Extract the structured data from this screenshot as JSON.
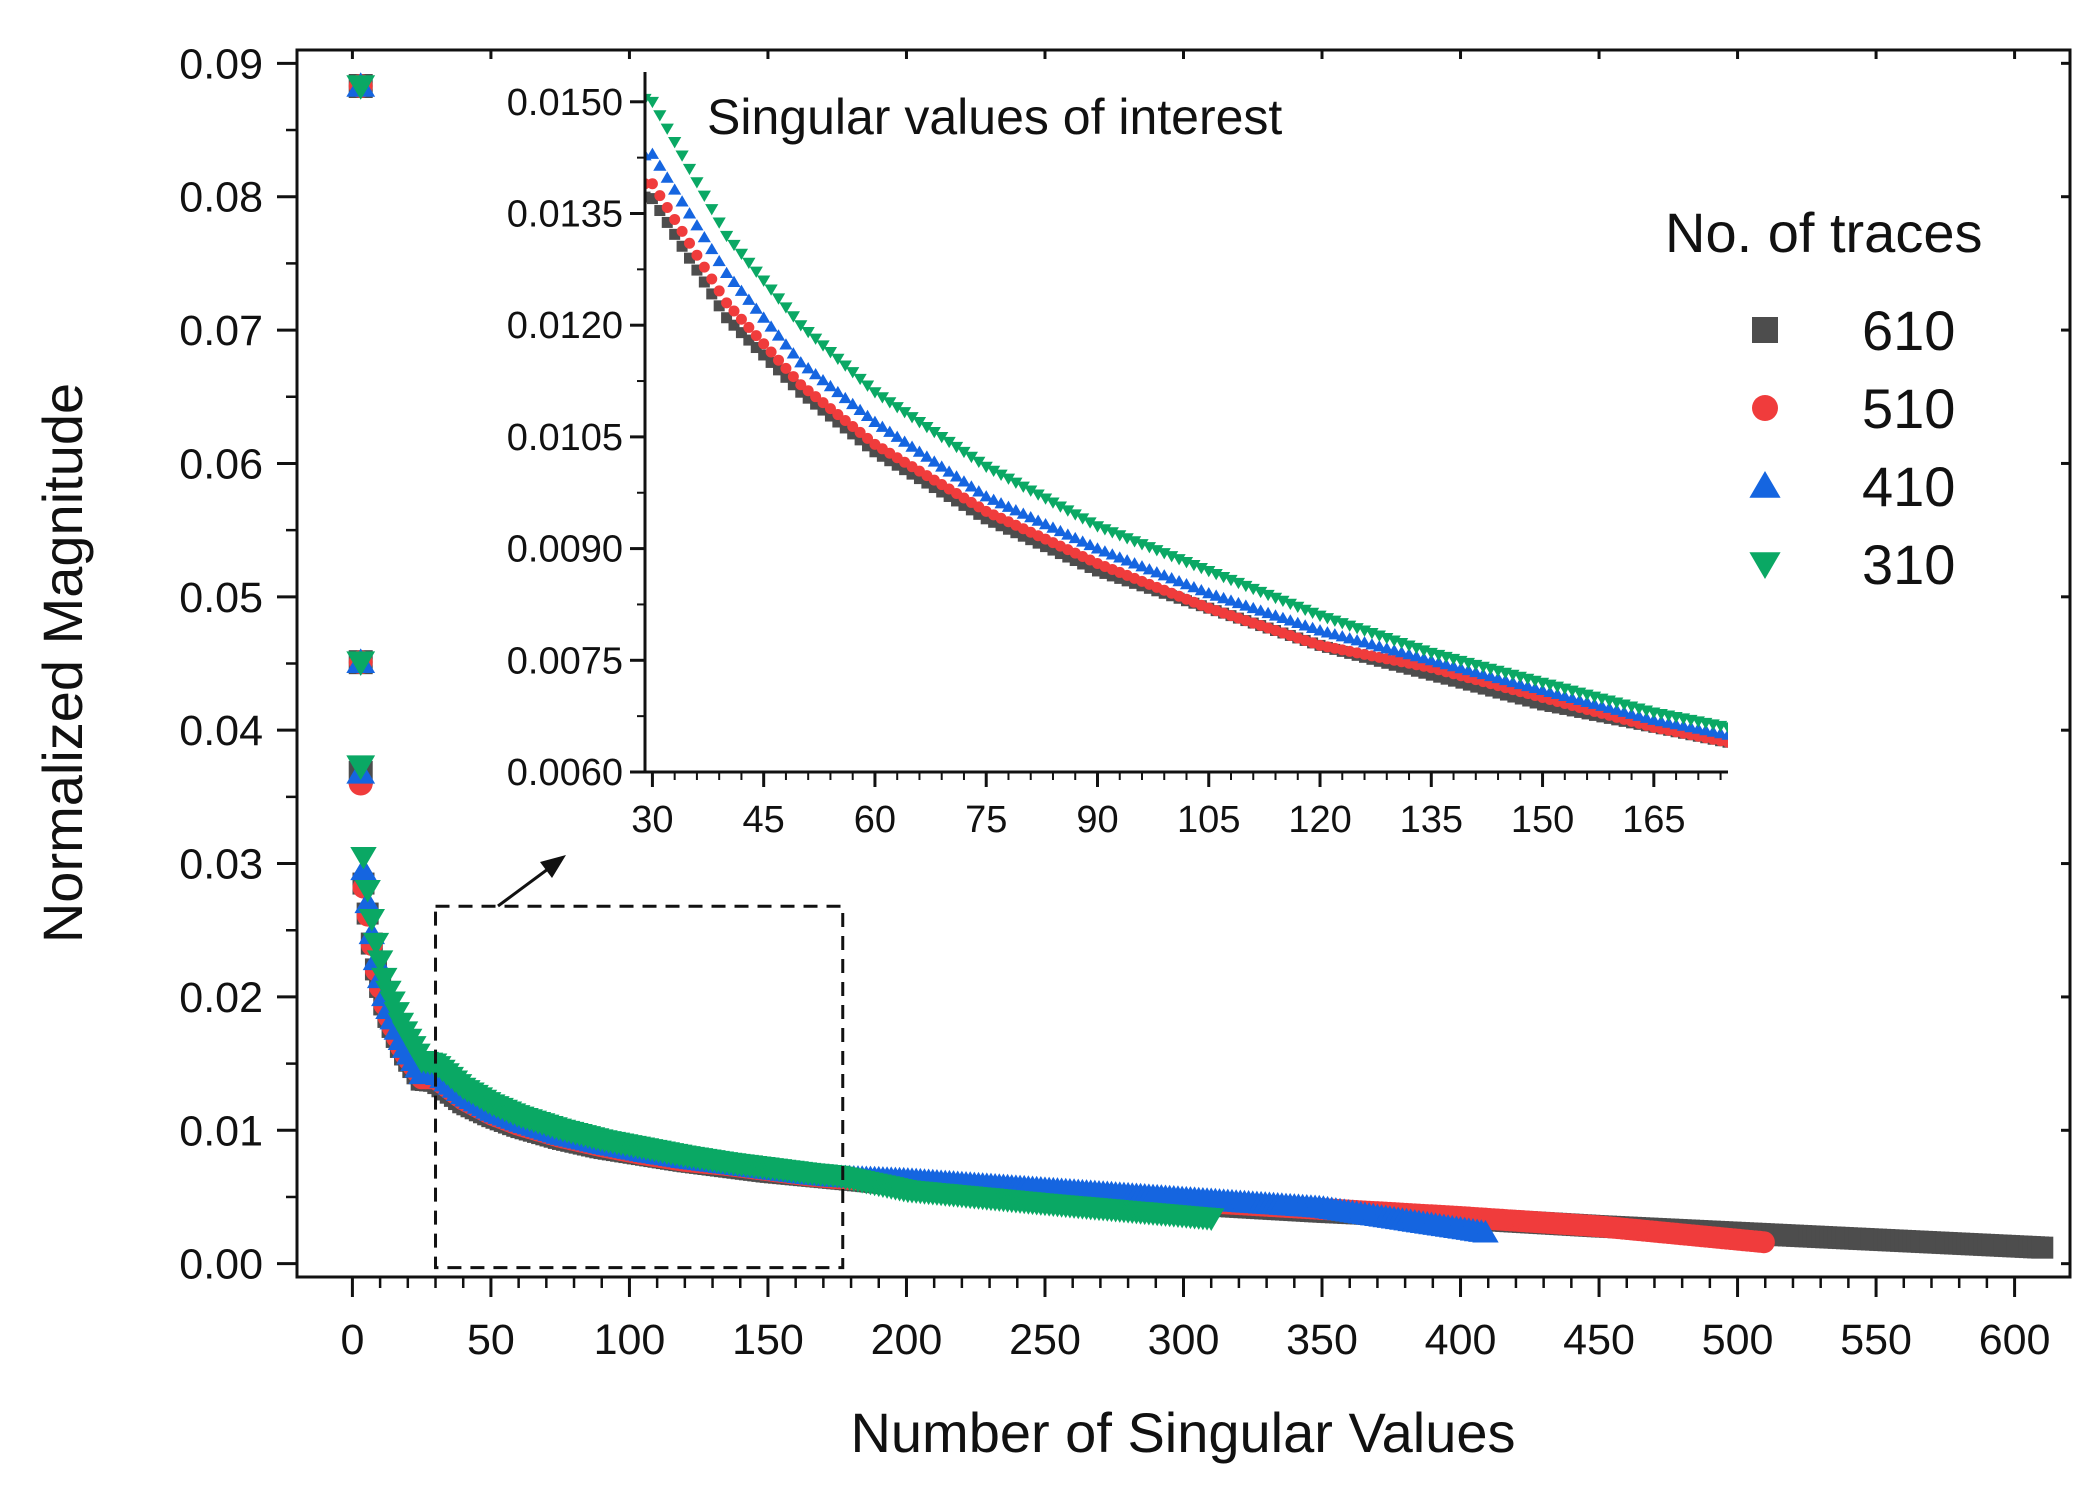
{
  "chart_data": {
    "type": "scatter",
    "main": {
      "xlabel": "Number of Singular Values",
      "ylabel": "Normalized Magnitude",
      "xlim": [
        -20,
        620
      ],
      "ylim": [
        -0.001,
        0.091
      ],
      "xticks": [
        "0",
        "50",
        "100",
        "150",
        "200",
        "250",
        "300",
        "350",
        "400",
        "450",
        "500",
        "550",
        "600"
      ],
      "yticks": [
        "0.00",
        "0.01",
        "0.02",
        "0.03",
        "0.04",
        "0.05",
        "0.06",
        "0.07",
        "0.08",
        "0.09"
      ],
      "zoom_box": {
        "x": [
          30,
          177
        ],
        "y": [
          -0.0003,
          0.0268
        ]
      }
    },
    "inset": {
      "title": "Singular values of interest",
      "xlim": [
        29,
        175
      ],
      "ylim": [
        0.006,
        0.0154
      ],
      "xticks": [
        "30",
        "45",
        "60",
        "75",
        "90",
        "105",
        "120",
        "135",
        "150",
        "165"
      ],
      "yticks": [
        "0.0060",
        "0.0075",
        "0.0090",
        "0.0105",
        "0.0120",
        "0.0135",
        "0.0150"
      ]
    },
    "legend": {
      "title": "No. of traces",
      "position": "right, inside inset area"
    },
    "series": [
      {
        "name": "610",
        "marker": "square",
        "color": "#4d4d4d",
        "count": 610,
        "points": [
          [
            3,
            0.0883
          ],
          [
            3,
            0.0451
          ],
          [
            3,
            0.0368
          ],
          [
            4,
            0.0285
          ],
          [
            6,
            0.0255
          ],
          [
            8,
            0.0225
          ],
          [
            12,
            0.019
          ],
          [
            18,
            0.016
          ],
          [
            25,
            0.0138
          ],
          [
            30,
            0.0137
          ],
          [
            40,
            0.0121
          ],
          [
            50,
            0.0111
          ],
          [
            60,
            0.0103
          ],
          [
            75,
            0.0094
          ],
          [
            90,
            0.0087
          ],
          [
            105,
            0.0082
          ],
          [
            120,
            0.0077
          ],
          [
            135,
            0.0073
          ],
          [
            150,
            0.0069
          ],
          [
            165,
            0.0066
          ],
          [
            175,
            0.0064
          ],
          [
            200,
            0.0059
          ],
          [
            250,
            0.0051
          ],
          [
            300,
            0.0045
          ],
          [
            350,
            0.0039
          ],
          [
            400,
            0.0034
          ],
          [
            450,
            0.0028
          ],
          [
            500,
            0.0023
          ],
          [
            550,
            0.0018
          ],
          [
            610,
            0.0012
          ]
        ]
      },
      {
        "name": "510",
        "marker": "circle",
        "color": "#f03c3c",
        "count": 510,
        "points": [
          [
            3,
            0.0883
          ],
          [
            3,
            0.0451
          ],
          [
            3,
            0.036
          ],
          [
            4,
            0.0282
          ],
          [
            6,
            0.0254
          ],
          [
            8,
            0.0224
          ],
          [
            12,
            0.019
          ],
          [
            18,
            0.016
          ],
          [
            25,
            0.0139
          ],
          [
            30,
            0.0139
          ],
          [
            40,
            0.0123
          ],
          [
            50,
            0.0112
          ],
          [
            60,
            0.0104
          ],
          [
            75,
            0.0095
          ],
          [
            90,
            0.0088
          ],
          [
            105,
            0.0082
          ],
          [
            120,
            0.0077
          ],
          [
            135,
            0.0074
          ],
          [
            150,
            0.007
          ],
          [
            165,
            0.0066
          ],
          [
            175,
            0.0064
          ],
          [
            200,
            0.0061
          ],
          [
            250,
            0.0053
          ],
          [
            300,
            0.0047
          ],
          [
            350,
            0.0041
          ],
          [
            400,
            0.0035
          ],
          [
            450,
            0.0028
          ],
          [
            510,
            0.0016
          ]
        ]
      },
      {
        "name": "410",
        "marker": "triangle-up",
        "color": "#1565e0",
        "count": 410,
        "points": [
          [
            3,
            0.0883
          ],
          [
            3,
            0.0451
          ],
          [
            3,
            0.0368
          ],
          [
            4,
            0.0295
          ],
          [
            6,
            0.0262
          ],
          [
            8,
            0.0232
          ],
          [
            12,
            0.0196
          ],
          [
            18,
            0.0165
          ],
          [
            25,
            0.0142
          ],
          [
            30,
            0.0143
          ],
          [
            40,
            0.0127
          ],
          [
            50,
            0.0115
          ],
          [
            60,
            0.0107
          ],
          [
            75,
            0.0097
          ],
          [
            90,
            0.009
          ],
          [
            105,
            0.0084
          ],
          [
            120,
            0.0079
          ],
          [
            135,
            0.0075
          ],
          [
            150,
            0.0071
          ],
          [
            165,
            0.0067
          ],
          [
            175,
            0.0065
          ],
          [
            200,
            0.0063
          ],
          [
            250,
            0.0056
          ],
          [
            300,
            0.0049
          ],
          [
            350,
            0.0042
          ],
          [
            410,
            0.0023
          ]
        ]
      },
      {
        "name": "310",
        "marker": "triangle-down",
        "color": "#0aa864",
        "count": 310,
        "points": [
          [
            3,
            0.0883
          ],
          [
            3,
            0.0451
          ],
          [
            3,
            0.0373
          ],
          [
            4,
            0.0305
          ],
          [
            6,
            0.0272
          ],
          [
            8,
            0.0245
          ],
          [
            12,
            0.021
          ],
          [
            18,
            0.0178
          ],
          [
            25,
            0.0152
          ],
          [
            30,
            0.015
          ],
          [
            40,
            0.0132
          ],
          [
            50,
            0.012
          ],
          [
            60,
            0.0111
          ],
          [
            75,
            0.0101
          ],
          [
            90,
            0.0093
          ],
          [
            105,
            0.0087
          ],
          [
            120,
            0.0081
          ],
          [
            135,
            0.0076
          ],
          [
            150,
            0.0072
          ],
          [
            165,
            0.0068
          ],
          [
            175,
            0.0066
          ],
          [
            200,
            0.0055
          ],
          [
            250,
            0.0045
          ],
          [
            310,
            0.0034
          ]
        ]
      }
    ]
  }
}
